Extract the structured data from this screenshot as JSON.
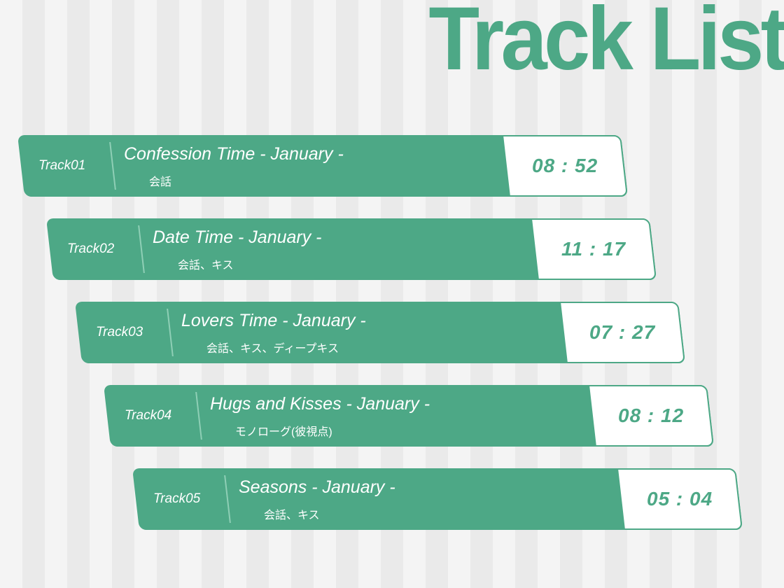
{
  "title": "Track List",
  "accent_color": "#4da886",
  "tracks": [
    {
      "number": "Track01",
      "name": "Confession Time - January -",
      "tags": "会話",
      "duration": "08 : 52"
    },
    {
      "number": "Track02",
      "name": "Date Time - January -",
      "tags": "会話、キス",
      "duration": "11 : 17"
    },
    {
      "number": "Track03",
      "name": "Lovers Time - January -",
      "tags": "会話、キス、ディープキス",
      "duration": "07 : 27"
    },
    {
      "number": "Track04",
      "name": "Hugs and Kisses - January -",
      "tags": "モノローグ(彼視点)",
      "duration": "08 : 12"
    },
    {
      "number": "Track05",
      "name": "Seasons - January -",
      "tags": "会話、キス",
      "duration": "05 : 04"
    }
  ]
}
